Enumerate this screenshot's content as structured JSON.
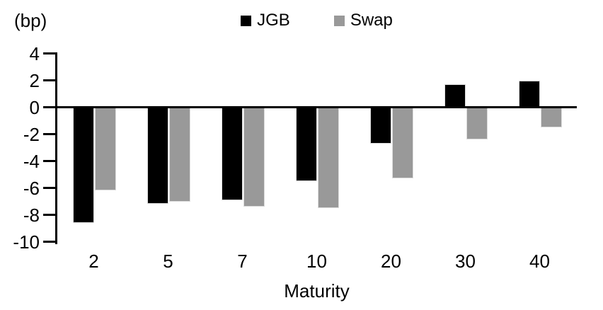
{
  "chart_data": {
    "type": "bar",
    "title": "",
    "unit_label": "(bp)",
    "xlabel": "Maturity",
    "categories": [
      "2",
      "5",
      "7",
      "10",
      "20",
      "30",
      "40"
    ],
    "series": [
      {
        "name": "JGB",
        "color": "#000000",
        "values": [
          -8.6,
          -7.2,
          -6.9,
          -5.5,
          -2.7,
          1.7,
          2.0
        ]
      },
      {
        "name": "Swap",
        "color": "#999999",
        "values": [
          -6.2,
          -7.0,
          -7.4,
          -7.5,
          -5.3,
          -2.4,
          -1.5
        ]
      }
    ],
    "yticks": [
      4,
      2,
      0,
      -2,
      -4,
      -6,
      -8,
      -10
    ],
    "ylim": [
      -10,
      4
    ],
    "legend_position": "top-center",
    "grid": false,
    "colors": {
      "jgb": "#000000",
      "swap": "#999999",
      "axis": "#000000",
      "background": "#ffffff"
    }
  }
}
